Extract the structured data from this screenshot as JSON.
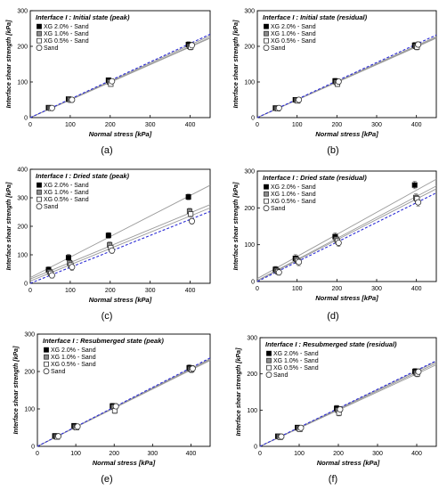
{
  "chart_data": [
    {
      "type": "scatter",
      "title": "Interface I : Initial state (peak)",
      "caption": "(a)",
      "xlabel": "Normal stress [kPa]",
      "ylabel": "Interface shear strength [kPa]",
      "xlim": [
        0,
        450
      ],
      "ylim": [
        0,
        300
      ],
      "xticks": [
        0,
        100,
        200,
        300,
        400
      ],
      "yticks": [
        0,
        100,
        200,
        300
      ],
      "legend_position": "top-left",
      "grid": false,
      "x": [
        50,
        100,
        200,
        400
      ],
      "series": [
        {
          "name": "XG 2.0% - Sand",
          "values": [
            28,
            52,
            105,
            205
          ],
          "err": [
            4,
            5,
            6,
            8
          ],
          "slope": 0.51,
          "intercept": 0
        },
        {
          "name": "XG 1.0% - Sand",
          "values": [
            27,
            51,
            100,
            200
          ],
          "err": [
            4,
            5,
            6,
            8
          ],
          "slope": 0.5,
          "intercept": 0
        },
        {
          "name": "XG 0.5% - Sand",
          "values": [
            26,
            49,
            94,
            198
          ],
          "err": [
            4,
            5,
            6,
            8
          ],
          "slope": 0.495,
          "intercept": 0
        },
        {
          "name": "Sand",
          "values": [
            27,
            50,
            102,
            203
          ],
          "err": [
            4,
            5,
            6,
            8
          ],
          "slope": 0.52,
          "intercept": 0
        }
      ]
    },
    {
      "type": "scatter",
      "title": "Interface I : Initial state (residual)",
      "caption": "(b)",
      "xlabel": "Normal stress [kPa]",
      "ylabel": "Interface shear strength [kPa]",
      "xlim": [
        0,
        450
      ],
      "ylim": [
        0,
        300
      ],
      "xticks": [
        0,
        100,
        200,
        300,
        400
      ],
      "yticks": [
        0,
        100,
        200,
        300
      ],
      "legend_position": "top-left",
      "grid": false,
      "x": [
        50,
        100,
        200,
        400
      ],
      "series": [
        {
          "name": "XG 2.0% - Sand",
          "values": [
            27,
            50,
            103,
            203
          ],
          "err": [
            5,
            6,
            7,
            8
          ],
          "slope": 0.505,
          "intercept": 0
        },
        {
          "name": "XG 1.0% - Sand",
          "values": [
            26,
            49,
            99,
            200
          ],
          "err": [
            5,
            6,
            7,
            8
          ],
          "slope": 0.5,
          "intercept": 0
        },
        {
          "name": "XG 0.5% - Sand",
          "values": [
            25,
            47,
            94,
            198
          ],
          "err": [
            5,
            6,
            7,
            8
          ],
          "slope": 0.495,
          "intercept": 0
        },
        {
          "name": "Sand",
          "values": [
            27,
            50,
            101,
            205
          ],
          "err": [
            5,
            6,
            7,
            8
          ],
          "slope": 0.515,
          "intercept": 0
        }
      ]
    },
    {
      "type": "scatter",
      "title": "Interface I : Dried state (peak)",
      "caption": "(c)",
      "xlabel": "Normal stress [kPa]",
      "ylabel": "Interface shear strength [kPa]",
      "xlim": [
        0,
        450
      ],
      "ylim": [
        0,
        400
      ],
      "xticks": [
        0,
        100,
        200,
        300,
        400
      ],
      "yticks": [
        0,
        100,
        200,
        300,
        400
      ],
      "legend_position": "top-left",
      "grid": false,
      "x": [
        50,
        100,
        200,
        400
      ],
      "series": [
        {
          "name": "XG 2.0% - Sand",
          "values": [
            48,
            90,
            168,
            303
          ],
          "err": [
            10,
            12,
            10,
            10
          ],
          "slope": 0.72,
          "intercept": 20
        },
        {
          "name": "XG 1.0% - Sand",
          "values": [
            40,
            72,
            135,
            253
          ],
          "err": [
            10,
            12,
            10,
            10
          ],
          "slope": 0.58,
          "intercept": 15
        },
        {
          "name": "XG 0.5% - Sand",
          "values": [
            35,
            64,
            125,
            243
          ],
          "err": [
            10,
            12,
            10,
            10
          ],
          "slope": 0.57,
          "intercept": 8
        },
        {
          "name": "Sand",
          "values": [
            28,
            57,
            115,
            218
          ],
          "err": [
            10,
            12,
            10,
            10
          ],
          "slope": 0.56,
          "intercept": 0
        }
      ]
    },
    {
      "type": "scatter",
      "title": "Interface I : Dried state (residual)",
      "caption": "(d)",
      "xlabel": "Normal stress [kPa]",
      "ylabel": "Interface shear strength [kPa]",
      "xlim": [
        0,
        450
      ],
      "ylim": [
        0,
        300
      ],
      "xticks": [
        0,
        100,
        200,
        300,
        400
      ],
      "yticks": [
        0,
        100,
        200,
        300
      ],
      "legend_position": "top-left",
      "grid": false,
      "x": [
        50,
        100,
        200,
        400
      ],
      "series": [
        {
          "name": "XG 2.0% - Sand",
          "values": [
            33,
            63,
            122,
            262
          ],
          "err": [
            8,
            10,
            10,
            10
          ],
          "slope": 0.6,
          "intercept": 8
        },
        {
          "name": "XG 1.0% - Sand",
          "values": [
            30,
            60,
            115,
            228
          ],
          "err": [
            8,
            10,
            10,
            10
          ],
          "slope": 0.57,
          "intercept": 3
        },
        {
          "name": "XG 0.5% - Sand",
          "values": [
            27,
            56,
            110,
            225
          ],
          "err": [
            8,
            10,
            10,
            10
          ],
          "slope": 0.555,
          "intercept": 2
        },
        {
          "name": "Sand",
          "values": [
            25,
            53,
            105,
            215
          ],
          "err": [
            8,
            10,
            10,
            10
          ],
          "slope": 0.535,
          "intercept": 0
        }
      ]
    },
    {
      "type": "scatter",
      "title": "Interface I : Resubmerged state (peak)",
      "caption": "(e)",
      "xlabel": "Normal stress [kPa]",
      "ylabel": "Interface shear strength [kPa]",
      "xlim": [
        0,
        450
      ],
      "ylim": [
        0,
        300
      ],
      "xticks": [
        0,
        100,
        200,
        300,
        400
      ],
      "yticks": [
        0,
        100,
        200,
        300
      ],
      "legend_position": "top-left",
      "grid": false,
      "x": [
        50,
        100,
        200,
        400
      ],
      "series": [
        {
          "name": "XG 2.0% - Sand",
          "values": [
            28,
            55,
            108,
            210
          ],
          "err": [
            6,
            6,
            7,
            8
          ],
          "slope": 0.52,
          "intercept": 0
        },
        {
          "name": "XG 1.0% - Sand",
          "values": [
            26,
            52,
            105,
            207
          ],
          "err": [
            6,
            6,
            7,
            8
          ],
          "slope": 0.515,
          "intercept": 0
        },
        {
          "name": "XG 0.5% - Sand",
          "values": [
            25,
            50,
            95,
            205
          ],
          "err": [
            6,
            6,
            7,
            8
          ],
          "slope": 0.51,
          "intercept": 0
        },
        {
          "name": "Sand",
          "values": [
            27,
            53,
            107,
            208
          ],
          "err": [
            6,
            6,
            7,
            8
          ],
          "slope": 0.525,
          "intercept": 0
        }
      ]
    },
    {
      "type": "scatter",
      "title": "Interface I : Resubmerged state (residual)",
      "caption": "(f)",
      "xlabel": "Normal stress [kPa]",
      "ylabel": "Interface shear strength [kPa]",
      "xlim": [
        0,
        450
      ],
      "ylim": [
        0,
        300
      ],
      "xticks": [
        0,
        100,
        200,
        300,
        400
      ],
      "yticks": [
        0,
        100,
        200,
        300
      ],
      "legend_position": "top-left",
      "grid": false,
      "x": [
        50,
        100,
        200,
        400
      ],
      "series": [
        {
          "name": "XG 2.0% - Sand",
          "values": [
            28,
            52,
            105,
            207
          ],
          "err": [
            5,
            6,
            8,
            8
          ],
          "slope": 0.52,
          "intercept": 0
        },
        {
          "name": "XG 1.0% - Sand",
          "values": [
            27,
            50,
            100,
            203
          ],
          "err": [
            5,
            6,
            8,
            8
          ],
          "slope": 0.51,
          "intercept": 0
        },
        {
          "name": "XG 0.5% - Sand",
          "values": [
            25,
            47,
            92,
            200
          ],
          "err": [
            5,
            6,
            8,
            8
          ],
          "slope": 0.5,
          "intercept": 0
        },
        {
          "name": "Sand",
          "values": [
            27,
            51,
            102,
            206
          ],
          "err": [
            5,
            6,
            8,
            8
          ],
          "slope": 0.525,
          "intercept": 0
        }
      ]
    }
  ],
  "colors": {
    "marker_black": "#000000",
    "marker_gray": "#8c8c8c",
    "fit_line": "#9a9a9a",
    "sand_fit_line": "#2b2bd6"
  }
}
